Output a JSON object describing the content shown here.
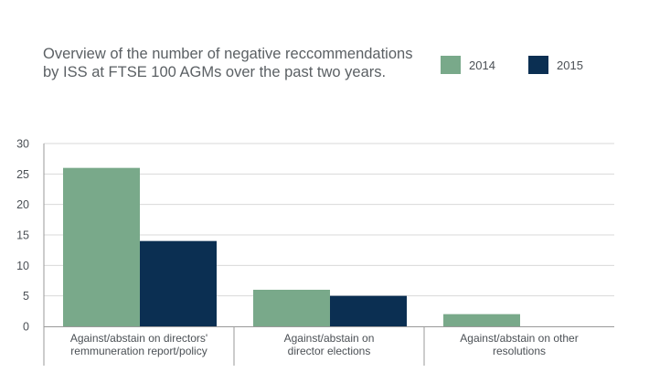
{
  "title_lines": [
    "Overview of the number of negative reccommendations",
    "by ISS at FTSE 100 AGMs over the past two years."
  ],
  "colors": {
    "s2014": "#79a98a",
    "s2015": "#0b2f52",
    "grid": "#d9d9d9",
    "axis": "#9a9a9a"
  },
  "legend": [
    {
      "label": "2014",
      "color": "#79a98a"
    },
    {
      "label": "2015",
      "color": "#0b2f52"
    }
  ],
  "chart_data": {
    "type": "bar",
    "title": "Overview of the number of negative reccommendations by ISS at FTSE 100 AGMs over the past two years.",
    "categories": [
      [
        "Against/abstain on directors'",
        "remmuneration report/policy"
      ],
      [
        "Against/abstain on",
        "director elections"
      ],
      [
        "Against/abstain on other",
        "resolutions"
      ]
    ],
    "series": [
      {
        "name": "2014",
        "values": [
          26,
          6,
          2
        ],
        "color": "#79a98a"
      },
      {
        "name": "2015",
        "values": [
          14,
          5,
          0
        ],
        "color": "#0b2f52"
      }
    ],
    "ylim": [
      0,
      30
    ],
    "yticks": [
      0,
      5,
      10,
      15,
      20,
      25,
      30
    ],
    "grid": true,
    "legend_position": "top-right"
  }
}
